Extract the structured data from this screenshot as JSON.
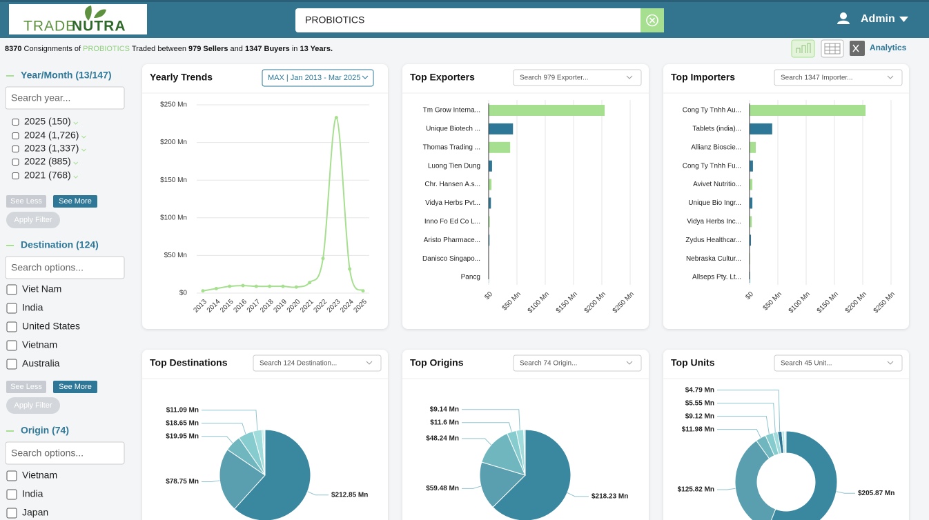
{
  "header": {
    "logo": [
      "TRADE",
      "NUTRA"
    ],
    "search": "PROBIOTICS",
    "user": "Admin"
  },
  "summary": [
    "8370",
    " Consignments of ",
    "PROBIOTICS",
    " Traded between ",
    "979 Sellers",
    " and ",
    "1347 Buyers",
    " in ",
    "13 Years."
  ],
  "toolbar": {
    "link": "Analytics"
  },
  "sidebar": [
    {
      "title": "Year/Month (13/147)",
      "placeholder": "Search year...",
      "options": [
        "2025 (150)",
        "2024 (1,726)",
        "2023 (1,337)",
        "2022 (885)",
        "2021 (768)"
      ],
      "buttons": [
        "See Less",
        "See More",
        "Apply Filter"
      ]
    },
    {
      "title": "Destination (124)",
      "placeholder": "Search options...",
      "options": [
        "Viet Nam",
        "India",
        "United States",
        "Vietnam",
        "Australia"
      ],
      "buttons": [
        "See Less",
        "See More",
        "Apply Filter"
      ]
    },
    {
      "title": "Origin (74)",
      "placeholder": "Search options...",
      "options": [
        "Vietnam",
        "India",
        "Japan"
      ]
    }
  ],
  "panels": [
    {
      "title": "Yearly Trends",
      "control": "MAX | Jan 2013 - Mar 2025",
      "chart": {
        "type": "line",
        "categories": [
          "2013",
          "2014",
          "2015",
          "2016",
          "2017",
          "2018",
          "2019",
          "2020",
          "2021",
          "2022",
          "2023",
          "2024",
          "2025"
        ],
        "values": [
          3,
          6,
          9,
          10,
          9,
          9,
          9,
          8,
          14,
          46,
          233,
          32,
          3
        ],
        "color": "#a6df8f",
        "ylim": [
          0,
          250
        ],
        "yticks": [
          {
            "value": 0,
            "label": "$0"
          },
          {
            "value": 50,
            "label": "$50 Mn"
          },
          {
            "value": 100,
            "label": "$100 Mn"
          },
          {
            "value": 150,
            "label": "$150 Mn"
          },
          {
            "value": 200,
            "label": "$200 Mn"
          },
          {
            "value": 250,
            "label": "$250 Mn"
          }
        ],
        "grid": true
      }
    },
    {
      "title": "Top Exporters",
      "control": "Search 979 Exporter...",
      "chart": {
        "type": "hbar",
        "categories": [
          "Tm Grow Interna...",
          "Unique Biotech ...",
          "Thomas Trading ...",
          "Luong Tien Dung",
          "Chr. Hansen A.s...",
          "Vidya Herbs Pvt...",
          "Inno Fo Ed Co L...",
          "Aristo Pharmace...",
          "Danisco Singapo...",
          "Pancg"
        ],
        "values": [
          205,
          43,
          38,
          6,
          5,
          4,
          2,
          1.5,
          0.6,
          0.3
        ],
        "colors": [
          "#a6df8f",
          "#2e7797",
          "#a6df8f",
          "#2e7797",
          "#a6df8f",
          "#2e7797",
          "#a6df8f",
          "#2e7797",
          "#a6df8f",
          "#2e7797"
        ],
        "xlim": [
          0,
          250
        ],
        "xticks": [
          {
            "value": 0,
            "label": "$0"
          },
          {
            "value": 50,
            "label": "$50 Mn"
          },
          {
            "value": 100,
            "label": "$100 Mn"
          },
          {
            "value": 150,
            "label": "$150 Mn"
          },
          {
            "value": 200,
            "label": "$200 Mn"
          },
          {
            "value": 250,
            "label": "$250 Mn"
          }
        ],
        "grid": true
      }
    },
    {
      "title": "Top Importers",
      "control": "Search 1347 Importer...",
      "chart": {
        "type": "hbar",
        "categories": [
          "Cong Ty Tnhh Au...",
          "Tablets (india)...",
          "Allianz Bioscie...",
          "Cong Ty Tnhh Fu...",
          "Avivet Nutritio...",
          "Unique Bio Ingr...",
          "Vidya Herbs Inc...",
          "Zydus Healthcar...",
          "Nebraska Cultur...",
          "Allseps Pty. Lt..."
        ],
        "values": [
          205,
          40,
          11,
          6,
          5,
          5,
          4,
          2.5,
          1,
          1
        ],
        "colors": [
          "#a6df8f",
          "#2e7797",
          "#a6df8f",
          "#2e7797",
          "#a6df8f",
          "#2e7797",
          "#a6df8f",
          "#2e7797",
          "#a6df8f",
          "#2e7797"
        ],
        "xlim": [
          0,
          250
        ],
        "xticks": [
          {
            "value": 0,
            "label": "$0"
          },
          {
            "value": 50,
            "label": "$50 Mn"
          },
          {
            "value": 100,
            "label": "$100 Mn"
          },
          {
            "value": 150,
            "label": "$150 Mn"
          },
          {
            "value": 200,
            "label": "$200 Mn"
          },
          {
            "value": 250,
            "label": "$250 Mn"
          }
        ],
        "grid": true
      }
    },
    {
      "title": "Top Destinations",
      "control": "Search 124 Destination...",
      "chart": {
        "type": "pie",
        "values": [
          212.85,
          78.75,
          19.95,
          18.65,
          11.09,
          2.2,
          1.5
        ],
        "value_labels": [
          "$212.85 Mn",
          "$78.75 Mn",
          "$19.95 Mn",
          "$18.65 Mn",
          "$11.09 Mn",
          null,
          null
        ],
        "colors": [
          "#3a87a0",
          "#5a9fb0",
          "#6fb6bf",
          "#86cccf",
          "#a0dcdc",
          "#b9e8e6",
          "#d0f0ee"
        ]
      }
    },
    {
      "title": "Top Origins",
      "control": "Search 74 Origin...",
      "chart": {
        "type": "pie",
        "values": [
          218.23,
          59.48,
          48.24,
          11.6,
          9.14,
          2
        ],
        "value_labels": [
          "$218.23 Mn",
          "$59.48 Mn",
          "$48.24 Mn",
          "$11.6 Mn",
          "$9.14 Mn",
          null
        ],
        "colors": [
          "#3a87a0",
          "#5a9fb0",
          "#6fb6bf",
          "#86cccf",
          "#a0dcdc",
          "#c4ecea"
        ]
      }
    },
    {
      "title": "Top Units",
      "control": "Search 45 Unit...",
      "chart": {
        "type": "donut",
        "values": [
          205.87,
          125.82,
          11.98,
          9.12,
          5.55,
          4.79,
          3,
          2
        ],
        "value_labels": [
          "$205.87 Mn",
          "$125.82 Mn",
          "$11.98 Mn",
          "$9.12 Mn",
          "$5.55 Mn",
          "$4.79 Mn",
          null,
          null
        ],
        "colors": [
          "#3a87a0",
          "#5a9fb0",
          "#6fb6bf",
          "#86cccf",
          "#a0dcdc",
          "#2e7797",
          "#b9e8e6",
          "#d0f0ee"
        ]
      }
    }
  ]
}
